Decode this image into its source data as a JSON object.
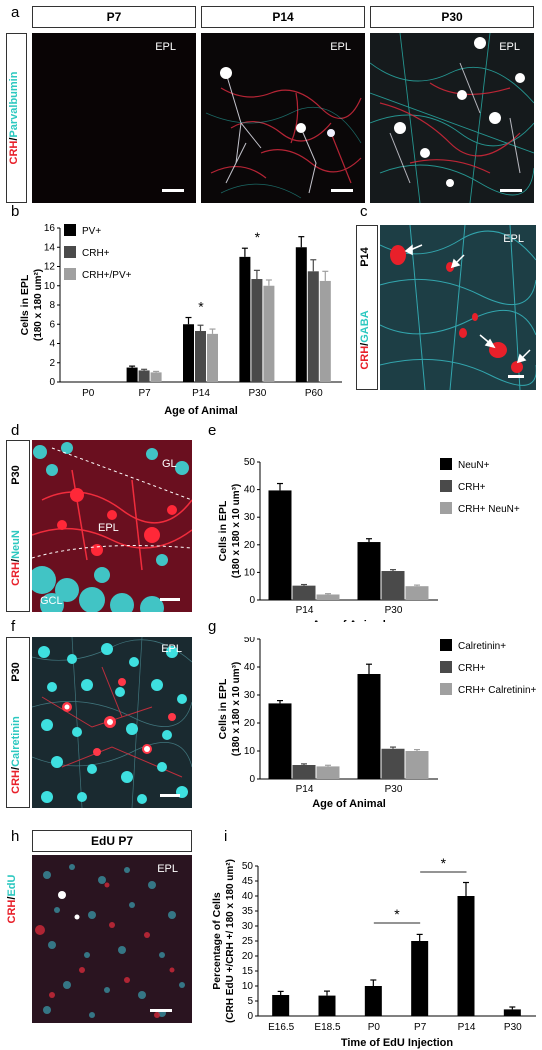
{
  "panels": {
    "a": {
      "letter": "a",
      "stain_left": "CRH",
      "stain_sep": "/",
      "stain_right": "Parvalbumin",
      "headers": [
        "P7",
        "P14",
        "P30"
      ],
      "region": "EPL"
    },
    "b": {
      "letter": "b"
    },
    "c": {
      "letter": "c",
      "age": "P14",
      "stain_left": "CRH",
      "stain_sep": "/",
      "stain_right": "GABA",
      "region": "EPL"
    },
    "d": {
      "letter": "d",
      "age": "P30",
      "stain_left": "CRH",
      "stain_sep": "/",
      "stain_right": "NeuN",
      "region_top": "GL",
      "region_mid": "EPL",
      "region_bottom": "GCL"
    },
    "e": {
      "letter": "e"
    },
    "f": {
      "letter": "f",
      "age": "P30",
      "stain_left": "CRH",
      "stain_sep": "/",
      "stain_right": "Calretinin",
      "region": "EPL"
    },
    "g": {
      "letter": "g"
    },
    "h": {
      "letter": "h",
      "header": "EdU P7",
      "stain_left": "CRH",
      "stain_sep": "/",
      "stain_right": "EdU",
      "region": "EPL"
    },
    "i": {
      "letter": "i"
    }
  },
  "colors": {
    "crh": "#e8202a",
    "marker": "#2cc8c0",
    "black": "#000000",
    "dark": "#4a4a4a",
    "light": "#a0a0a0"
  },
  "chart_data": [
    {
      "id": "b",
      "type": "bar",
      "categories": [
        "P0",
        "P7",
        "P14",
        "P30",
        "P60"
      ],
      "series": [
        {
          "name": "PV+",
          "values": [
            0,
            1.5,
            6.0,
            13.0,
            14.0
          ],
          "errors": [
            0,
            0.15,
            0.7,
            0.9,
            1.1
          ]
        },
        {
          "name": "CRH+",
          "values": [
            0,
            1.2,
            5.3,
            10.7,
            11.5
          ],
          "errors": [
            0,
            0.12,
            0.6,
            0.9,
            1.2
          ]
        },
        {
          "name": "CRH+/PV+",
          "values": [
            0,
            1.0,
            5.0,
            10.0,
            10.5
          ],
          "errors": [
            0,
            0.1,
            0.5,
            0.6,
            1.0
          ]
        }
      ],
      "significance": [
        {
          "category": "P14",
          "label": "*"
        },
        {
          "category": "P30",
          "label": "*"
        }
      ],
      "ylabel": "Cells in EPL (180 x 180 um²)",
      "ylabel_line1": "Cells in EPL",
      "ylabel_line2": "(180 x 180 um²)",
      "xlabel": "Age of Animal",
      "ylim": [
        0,
        16
      ],
      "yticks": [
        0,
        2,
        4,
        6,
        8,
        10,
        12,
        14,
        16
      ],
      "legend_position": "top-left"
    },
    {
      "id": "e",
      "type": "bar",
      "categories": [
        "P14",
        "P30"
      ],
      "series": [
        {
          "name": "NeuN+",
          "values": [
            39.7,
            21.0
          ],
          "errors": [
            2.5,
            1.2
          ]
        },
        {
          "name": "CRH+",
          "values": [
            5.2,
            10.5
          ],
          "errors": [
            0.4,
            0.5
          ]
        },
        {
          "name": "CRH+ NeuN+",
          "values": [
            2.0,
            5.0
          ],
          "errors": [
            0.3,
            0.4
          ]
        }
      ],
      "ylabel_line1": "Cells in EPL",
      "ylabel_line2": "(180 x 180 x 10 um³)",
      "xlabel": "Age of Animal",
      "ylim": [
        0,
        50
      ],
      "yticks": [
        0,
        10,
        20,
        30,
        40,
        50
      ],
      "legend_position": "top-right"
    },
    {
      "id": "g",
      "type": "bar",
      "categories": [
        "P14",
        "P30"
      ],
      "series": [
        {
          "name": "Calretinin+",
          "values": [
            27.0,
            37.5
          ],
          "errors": [
            1.0,
            3.5
          ]
        },
        {
          "name": "CRH+",
          "values": [
            5.0,
            10.8
          ],
          "errors": [
            0.4,
            0.6
          ]
        },
        {
          "name": "CRH+ Calretinin+",
          "values": [
            4.5,
            10.0
          ],
          "errors": [
            0.4,
            0.5
          ]
        }
      ],
      "ylabel_line1": "Cells in EPL",
      "ylabel_line2": "(180 x 180 x 10 um³)",
      "xlabel": "Age of Animal",
      "ylim": [
        0,
        50
      ],
      "yticks": [
        0,
        10,
        20,
        30,
        40,
        50
      ],
      "legend_position": "top-right"
    },
    {
      "id": "i",
      "type": "bar",
      "categories": [
        "E16.5",
        "E18.5",
        "P0",
        "P7",
        "P14",
        "P30"
      ],
      "series": [
        {
          "values": [
            7.0,
            6.8,
            10.0,
            25.0,
            40.0,
            2.2
          ],
          "errors": [
            1.2,
            1.5,
            2.0,
            2.2,
            4.5,
            0.8
          ]
        }
      ],
      "significance": [
        {
          "from": "P0",
          "to": "P7",
          "label": "*"
        },
        {
          "from": "P7",
          "to": "P14",
          "label": "*"
        }
      ],
      "ylabel_line1": "Percentage of Cells",
      "ylabel_line2": "(CRH EdU +/CRH +/ 180 x 180 um²)",
      "xlabel": "Time of EdU Injection",
      "ylim": [
        0,
        50
      ],
      "yticks": [
        0,
        5,
        10,
        15,
        20,
        25,
        30,
        35,
        40,
        45,
        50
      ]
    }
  ]
}
